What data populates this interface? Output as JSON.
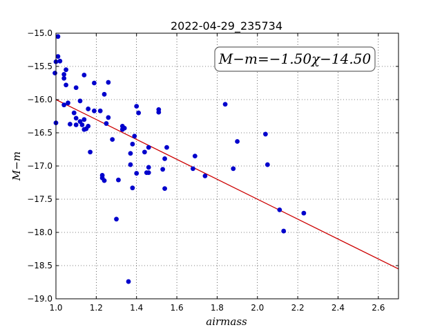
{
  "chart_data": {
    "type": "scatter",
    "title": "2022-04-29_235734",
    "xlabel": "airmass",
    "ylabel": "M−m",
    "xlim": [
      1.0,
      2.7
    ],
    "ylim": [
      -19.0,
      -15.0
    ],
    "xticks": [
      "1.0",
      "1.2",
      "1.4",
      "1.6",
      "1.8",
      "2.0",
      "2.2",
      "2.4",
      "2.6"
    ],
    "xtick_values": [
      1.0,
      1.2,
      1.4,
      1.6,
      1.8,
      2.0,
      2.2,
      2.4,
      2.6
    ],
    "yticks": [
      "−15.0",
      "−15.5",
      "−16.0",
      "−16.5",
      "−17.0",
      "−17.5",
      "−18.0",
      "−18.5",
      "−19.0"
    ],
    "ytick_values": [
      -15.0,
      -15.5,
      -16.0,
      -16.5,
      -17.0,
      -17.5,
      -18.0,
      -18.5,
      -19.0
    ],
    "grid": true,
    "annotation": "M−m=−1.50χ−14.50",
    "annotation_position": "top-right",
    "marker_color": "#0000cc",
    "line_color": "#cc0000",
    "fit_line": {
      "slope": -1.5,
      "intercept": -14.5
    },
    "points": [
      {
        "x": 1.01,
        "y": -15.05
      },
      {
        "x": 1.01,
        "y": -15.35
      },
      {
        "x": 1.0,
        "y": -15.43
      },
      {
        "x": 1.02,
        "y": -15.42
      },
      {
        "x": 0.995,
        "y": -15.6
      },
      {
        "x": 1.04,
        "y": -15.62
      },
      {
        "x": 1.04,
        "y": -15.68
      },
      {
        "x": 1.05,
        "y": -15.55
      },
      {
        "x": 1.05,
        "y": -15.78
      },
      {
        "x": 1.1,
        "y": -15.82
      },
      {
        "x": 1.14,
        "y": -15.63
      },
      {
        "x": 1.19,
        "y": -15.75
      },
      {
        "x": 1.26,
        "y": -15.74
      },
      {
        "x": 1.24,
        "y": -15.92
      },
      {
        "x": 1.0,
        "y": -16.35
      },
      {
        "x": 1.04,
        "y": -16.08
      },
      {
        "x": 1.06,
        "y": -16.05
      },
      {
        "x": 1.12,
        "y": -16.02
      },
      {
        "x": 1.09,
        "y": -16.2
      },
      {
        "x": 1.1,
        "y": -16.28
      },
      {
        "x": 1.07,
        "y": -16.37
      },
      {
        "x": 1.1,
        "y": -16.38
      },
      {
        "x": 1.12,
        "y": -16.33
      },
      {
        "x": 1.13,
        "y": -16.38
      },
      {
        "x": 1.14,
        "y": -16.3
      },
      {
        "x": 1.16,
        "y": -16.14
      },
      {
        "x": 1.19,
        "y": -16.17
      },
      {
        "x": 1.22,
        "y": -16.17
      },
      {
        "x": 1.14,
        "y": -16.45
      },
      {
        "x": 1.15,
        "y": -16.44
      },
      {
        "x": 1.16,
        "y": -16.4
      },
      {
        "x": 1.26,
        "y": -16.27
      },
      {
        "x": 1.25,
        "y": -16.36
      },
      {
        "x": 1.33,
        "y": -16.4
      },
      {
        "x": 1.33,
        "y": -16.45
      },
      {
        "x": 1.34,
        "y": -16.43
      },
      {
        "x": 1.17,
        "y": -16.79
      },
      {
        "x": 1.28,
        "y": -16.6
      },
      {
        "x": 1.4,
        "y": -16.1
      },
      {
        "x": 1.41,
        "y": -16.2
      },
      {
        "x": 1.51,
        "y": -16.15
      },
      {
        "x": 1.51,
        "y": -16.19
      },
      {
        "x": 1.39,
        "y": -16.55
      },
      {
        "x": 1.38,
        "y": -16.67
      },
      {
        "x": 1.37,
        "y": -16.81
      },
      {
        "x": 1.44,
        "y": -16.79
      },
      {
        "x": 1.46,
        "y": -16.72
      },
      {
        "x": 1.55,
        "y": -16.72
      },
      {
        "x": 1.54,
        "y": -16.89
      },
      {
        "x": 1.37,
        "y": -16.98
      },
      {
        "x": 1.4,
        "y": -17.11
      },
      {
        "x": 1.45,
        "y": -17.1
      },
      {
        "x": 1.46,
        "y": -17.02
      },
      {
        "x": 1.46,
        "y": -17.1
      },
      {
        "x": 1.53,
        "y": -17.05
      },
      {
        "x": 1.23,
        "y": -17.14
      },
      {
        "x": 1.23,
        "y": -17.18
      },
      {
        "x": 1.24,
        "y": -17.22
      },
      {
        "x": 1.31,
        "y": -17.21
      },
      {
        "x": 1.38,
        "y": -17.33
      },
      {
        "x": 1.54,
        "y": -17.34
      },
      {
        "x": 1.3,
        "y": -17.8
      },
      {
        "x": 1.36,
        "y": -18.74
      },
      {
        "x": 1.68,
        "y": -17.04
      },
      {
        "x": 1.69,
        "y": -16.85
      },
      {
        "x": 1.74,
        "y": -17.15
      },
      {
        "x": 1.84,
        "y": -16.07
      },
      {
        "x": 1.88,
        "y": -17.04
      },
      {
        "x": 1.9,
        "y": -16.63
      },
      {
        "x": 2.04,
        "y": -16.52
      },
      {
        "x": 2.05,
        "y": -16.98
      },
      {
        "x": 2.11,
        "y": -17.66
      },
      {
        "x": 2.13,
        "y": -17.98
      },
      {
        "x": 2.23,
        "y": -17.71
      }
    ]
  }
}
